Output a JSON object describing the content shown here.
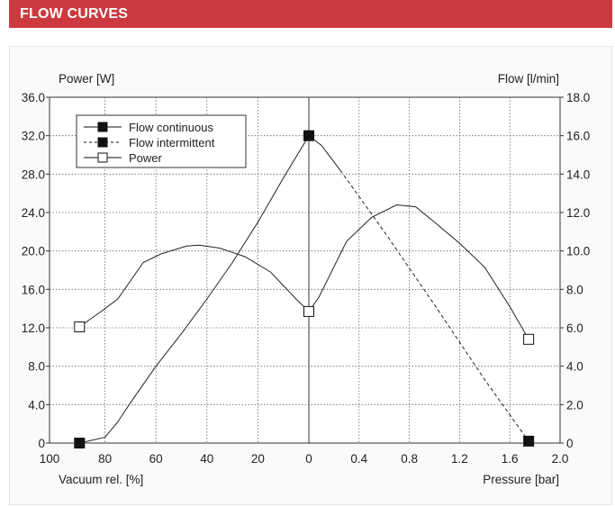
{
  "header": {
    "title": "FLOW CURVES"
  },
  "colors": {
    "accent": "#cc3a3f",
    "panel_bg": "#fafafa",
    "plot_bg": "#ffffff",
    "line": "#222222"
  },
  "chart_data": {
    "type": "line",
    "left_axis_title": "Power [W]",
    "right_axis_title": "Flow [l/min]",
    "bottom_left_title": "Vacuum rel. [%]",
    "bottom_right_title": "Pressure [bar]",
    "y_left": {
      "range": [
        0,
        36
      ],
      "ticks": [
        "0",
        "4.0",
        "8.0",
        "12.0",
        "16.0",
        "20.0",
        "24.0",
        "28.0",
        "32.0",
        "36.0"
      ]
    },
    "y_right": {
      "range": [
        0,
        18
      ],
      "ticks": [
        "0",
        "2.0",
        "4.0",
        "6.0",
        "8.0",
        "10.0",
        "12.0",
        "14.0",
        "16.0",
        "18.0"
      ]
    },
    "x_vacuum": {
      "range": [
        100,
        0
      ],
      "ticks": [
        "100",
        "80",
        "60",
        "40",
        "20",
        "0"
      ]
    },
    "x_pressure": {
      "range": [
        0,
        2.0
      ],
      "ticks": [
        "0.4",
        "0.8",
        "1.2",
        "1.6",
        "2.0"
      ]
    },
    "grid": true,
    "legend_position": "top-left",
    "series": [
      {
        "name": "Flow continuous",
        "style": "solid",
        "marker": "filled-square",
        "axis": "right",
        "points": [
          {
            "x": "vac:90",
            "y": 0
          },
          {
            "x": "vac:80",
            "y": 0.3
          },
          {
            "x": "vac:75",
            "y": 1.1
          },
          {
            "x": "vac:70",
            "y": 2.1
          },
          {
            "x": "vac:60",
            "y": 4.0
          },
          {
            "x": "vac:50",
            "y": 5.7
          },
          {
            "x": "vac:40",
            "y": 7.5
          },
          {
            "x": "vac:30",
            "y": 9.4
          },
          {
            "x": "vac:20",
            "y": 11.5
          },
          {
            "x": "vac:10",
            "y": 13.8
          },
          {
            "x": "vac:0",
            "y": 16.0
          },
          {
            "x": "bar:0.1",
            "y": 15.5
          },
          {
            "x": "bar:0.25",
            "y": 14.2
          }
        ],
        "markers_at": [
          0,
          10
        ]
      },
      {
        "name": "Flow intermittent",
        "style": "dashed",
        "marker": "filled-square",
        "axis": "right",
        "points": [
          {
            "x": "bar:0.25",
            "y": 14.2
          },
          {
            "x": "bar:0.6",
            "y": 11.0
          },
          {
            "x": "bar:1.0",
            "y": 7.2
          },
          {
            "x": "bar:1.4",
            "y": 3.3
          },
          {
            "x": "bar:1.75",
            "y": 0.1
          }
        ],
        "markers_at": [
          4
        ]
      },
      {
        "name": "Power",
        "style": "solid",
        "marker": "open-square",
        "axis": "left",
        "points": [
          {
            "x": "vac:90",
            "y": 12.1
          },
          {
            "x": "vac:82",
            "y": 13.6
          },
          {
            "x": "vac:75",
            "y": 15.0
          },
          {
            "x": "vac:65",
            "y": 18.8
          },
          {
            "x": "vac:58",
            "y": 19.7
          },
          {
            "x": "vac:48",
            "y": 20.5
          },
          {
            "x": "vac:43",
            "y": 20.6
          },
          {
            "x": "vac:35",
            "y": 20.3
          },
          {
            "x": "vac:25",
            "y": 19.4
          },
          {
            "x": "vac:15",
            "y": 17.8
          },
          {
            "x": "vac:5",
            "y": 15.0
          },
          {
            "x": "vac:0",
            "y": 13.7
          },
          {
            "x": "bar:0.08",
            "y": 15.2
          },
          {
            "x": "bar:0.3",
            "y": 21.0
          },
          {
            "x": "bar:0.5",
            "y": 23.5
          },
          {
            "x": "bar:0.7",
            "y": 24.8
          },
          {
            "x": "bar:0.85",
            "y": 24.6
          },
          {
            "x": "bar:1.0",
            "y": 23.0
          },
          {
            "x": "bar:1.2",
            "y": 20.8
          },
          {
            "x": "bar:1.4",
            "y": 18.3
          },
          {
            "x": "bar:1.6",
            "y": 14.2
          },
          {
            "x": "bar:1.75",
            "y": 10.8
          }
        ],
        "markers_at": [
          0,
          11,
          21
        ]
      }
    ]
  }
}
